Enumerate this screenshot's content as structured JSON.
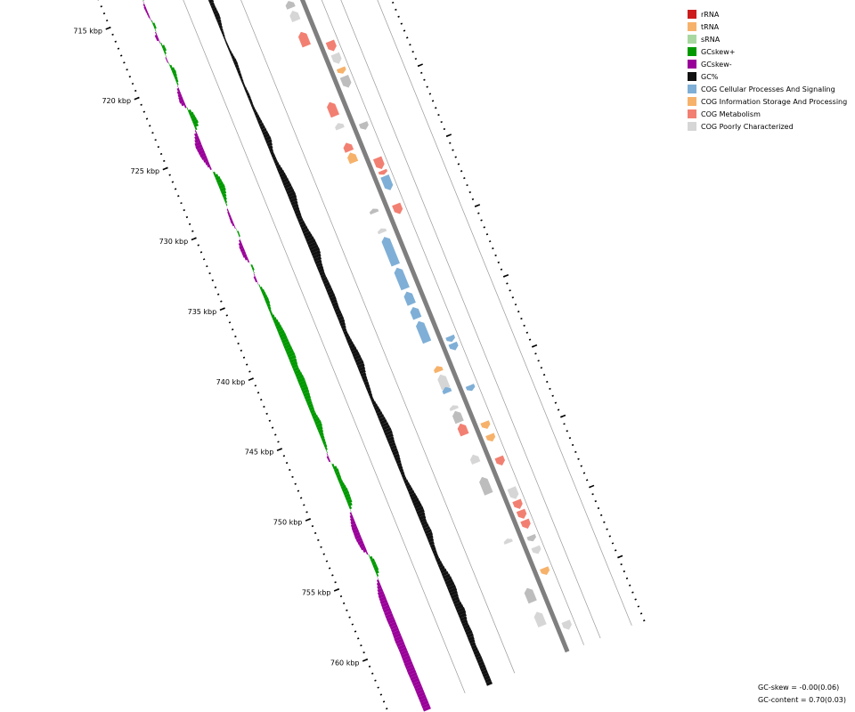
{
  "map": {
    "start_kbp": 712.8,
    "end_kbp": 763.5,
    "tick_labels": [
      "715 kbp",
      "720 kbp",
      "725 kbp",
      "730 kbp",
      "735 kbp",
      "740 kbp",
      "745 kbp",
      "750 kbp",
      "755 kbp",
      "760 kbp"
    ],
    "tick_values_kbp": [
      715,
      720,
      725,
      730,
      735,
      740,
      745,
      750,
      755,
      760
    ],
    "colors": {
      "gc_skew_pos": "#009900",
      "gc_skew_neg": "#990099",
      "gc_content": "#111111",
      "backbone": "#7f7f7f",
      "ring_line": "#9a9a9a"
    },
    "gc_skew_profile": [
      {
        "kbp": 713.0,
        "v": 0.6
      },
      {
        "kbp": 713.8,
        "v": 0.3
      },
      {
        "kbp": 714.6,
        "v": -0.25
      },
      {
        "kbp": 715.4,
        "v": -0.15
      },
      {
        "kbp": 716.0,
        "v": 0.35
      },
      {
        "kbp": 716.8,
        "v": -0.4
      },
      {
        "kbp": 717.6,
        "v": 0.45
      },
      {
        "kbp": 718.4,
        "v": -0.2
      },
      {
        "kbp": 719.2,
        "v": 0.5
      },
      {
        "kbp": 720.0,
        "v": 0.25
      },
      {
        "kbp": 720.6,
        "v": -0.35
      },
      {
        "kbp": 721.4,
        "v": -0.6
      },
      {
        "kbp": 722.2,
        "v": 0.5
      },
      {
        "kbp": 723.0,
        "v": 0.7
      },
      {
        "kbp": 723.6,
        "v": -0.3
      },
      {
        "kbp": 724.4,
        "v": -0.85
      },
      {
        "kbp": 725.2,
        "v": -0.7
      },
      {
        "kbp": 726.0,
        "v": -0.3
      },
      {
        "kbp": 726.8,
        "v": 0.55
      },
      {
        "kbp": 727.6,
        "v": 0.75
      },
      {
        "kbp": 728.4,
        "v": 0.3
      },
      {
        "kbp": 729.2,
        "v": -0.2
      },
      {
        "kbp": 730.0,
        "v": -0.3
      },
      {
        "kbp": 730.8,
        "v": 0.25
      },
      {
        "kbp": 731.6,
        "v": -0.5
      },
      {
        "kbp": 732.4,
        "v": -0.45
      },
      {
        "kbp": 733.2,
        "v": 0.3
      },
      {
        "kbp": 734.0,
        "v": -0.3
      },
      {
        "kbp": 734.8,
        "v": 0.35
      },
      {
        "kbp": 735.6,
        "v": 0.5
      },
      {
        "kbp": 736.4,
        "v": 0.2
      },
      {
        "kbp": 737.2,
        "v": 0.6
      },
      {
        "kbp": 738.0,
        "v": 0.8
      },
      {
        "kbp": 738.8,
        "v": 0.85
      },
      {
        "kbp": 739.6,
        "v": 0.95
      },
      {
        "kbp": 740.4,
        "v": 0.7
      },
      {
        "kbp": 741.2,
        "v": 0.9
      },
      {
        "kbp": 742.0,
        "v": 0.85
      },
      {
        "kbp": 742.8,
        "v": 0.65
      },
      {
        "kbp": 743.6,
        "v": 0.55
      },
      {
        "kbp": 744.4,
        "v": 0.8
      },
      {
        "kbp": 745.2,
        "v": 0.45
      },
      {
        "kbp": 746.0,
        "v": 0.3
      },
      {
        "kbp": 746.8,
        "v": -0.3
      },
      {
        "kbp": 747.6,
        "v": 0.55
      },
      {
        "kbp": 748.4,
        "v": 0.45
      },
      {
        "kbp": 749.2,
        "v": 0.7
      },
      {
        "kbp": 750.0,
        "v": 0.6
      },
      {
        "kbp": 750.8,
        "v": -0.3
      },
      {
        "kbp": 751.6,
        "v": -0.7
      },
      {
        "kbp": 752.4,
        "v": -0.75
      },
      {
        "kbp": 753.2,
        "v": -0.55
      },
      {
        "kbp": 754.0,
        "v": 0.45
      },
      {
        "kbp": 754.8,
        "v": 0.5
      },
      {
        "kbp": 755.6,
        "v": -0.35
      },
      {
        "kbp": 756.4,
        "v": -0.8
      },
      {
        "kbp": 757.2,
        "v": -0.9
      },
      {
        "kbp": 758.0,
        "v": -0.95
      },
      {
        "kbp": 758.8,
        "v": -0.9
      },
      {
        "kbp": 759.6,
        "v": -1.0
      },
      {
        "kbp": 760.4,
        "v": -0.95
      },
      {
        "kbp": 761.2,
        "v": -1.0
      },
      {
        "kbp": 762.0,
        "v": -1.0
      },
      {
        "kbp": 762.8,
        "v": -0.95
      }
    ],
    "gc_content_profile": [
      {
        "kbp": 713.0,
        "v": 0.2
      },
      {
        "kbp": 713.8,
        "v": 0.35
      },
      {
        "kbp": 714.6,
        "v": 0.6
      },
      {
        "kbp": 715.4,
        "v": 0.5
      },
      {
        "kbp": 716.2,
        "v": 0.35
      },
      {
        "kbp": 717.0,
        "v": 0.45
      },
      {
        "kbp": 717.8,
        "v": 0.2
      },
      {
        "kbp": 718.6,
        "v": 0.05
      },
      {
        "kbp": 719.4,
        "v": 0.1
      },
      {
        "kbp": 720.2,
        "v": 0.3
      },
      {
        "kbp": 721.0,
        "v": 0.2
      },
      {
        "kbp": 721.8,
        "v": 0.1
      },
      {
        "kbp": 722.6,
        "v": 0.2
      },
      {
        "kbp": 723.4,
        "v": 0.15
      },
      {
        "kbp": 724.2,
        "v": 0.3
      },
      {
        "kbp": 725.0,
        "v": 0.45
      },
      {
        "kbp": 725.8,
        "v": 0.6
      },
      {
        "kbp": 726.6,
        "v": 0.25
      },
      {
        "kbp": 727.4,
        "v": 0.3
      },
      {
        "kbp": 728.2,
        "v": 0.55
      },
      {
        "kbp": 729.0,
        "v": 0.7
      },
      {
        "kbp": 729.8,
        "v": 0.8
      },
      {
        "kbp": 730.6,
        "v": 0.55
      },
      {
        "kbp": 731.4,
        "v": 0.45
      },
      {
        "kbp": 732.2,
        "v": 0.6
      },
      {
        "kbp": 733.0,
        "v": 0.85
      },
      {
        "kbp": 733.8,
        "v": 0.95
      },
      {
        "kbp": 734.6,
        "v": 0.6
      },
      {
        "kbp": 735.4,
        "v": 0.45
      },
      {
        "kbp": 736.2,
        "v": 0.55
      },
      {
        "kbp": 737.0,
        "v": 0.6
      },
      {
        "kbp": 737.8,
        "v": 0.5
      },
      {
        "kbp": 738.6,
        "v": 0.55
      },
      {
        "kbp": 739.4,
        "v": 0.3
      },
      {
        "kbp": 740.2,
        "v": 0.45
      },
      {
        "kbp": 741.0,
        "v": 0.65
      },
      {
        "kbp": 741.8,
        "v": 0.75
      },
      {
        "kbp": 742.6,
        "v": 0.45
      },
      {
        "kbp": 743.4,
        "v": 0.35
      },
      {
        "kbp": 744.2,
        "v": 0.2
      },
      {
        "kbp": 745.0,
        "v": 0.45
      },
      {
        "kbp": 745.8,
        "v": 0.65
      },
      {
        "kbp": 746.6,
        "v": 0.8
      },
      {
        "kbp": 747.4,
        "v": 0.6
      },
      {
        "kbp": 748.2,
        "v": 0.55
      },
      {
        "kbp": 749.0,
        "v": 0.35
      },
      {
        "kbp": 749.8,
        "v": 0.25
      },
      {
        "kbp": 750.6,
        "v": 0.45
      },
      {
        "kbp": 751.4,
        "v": 0.65
      },
      {
        "kbp": 752.2,
        "v": 0.8
      },
      {
        "kbp": 753.0,
        "v": 0.55
      },
      {
        "kbp": 753.8,
        "v": 0.7
      },
      {
        "kbp": 754.6,
        "v": 0.4
      },
      {
        "kbp": 755.4,
        "v": 0.3
      },
      {
        "kbp": 756.2,
        "v": 0.45
      },
      {
        "kbp": 757.0,
        "v": 0.75
      },
      {
        "kbp": 757.8,
        "v": 0.85
      },
      {
        "kbp": 758.6,
        "v": 0.65
      },
      {
        "kbp": 759.4,
        "v": 0.85
      },
      {
        "kbp": 760.2,
        "v": 0.55
      },
      {
        "kbp": 761.0,
        "v": 0.65
      },
      {
        "kbp": 761.8,
        "v": 0.45
      },
      {
        "kbp": 762.6,
        "v": 0.55
      }
    ],
    "genes": [
      {
        "start": 713.0,
        "end": 713.4,
        "strand": -1,
        "cat": "metabolism"
      },
      {
        "start": 713.5,
        "end": 713.8,
        "strand": -1,
        "cat": "metabolism"
      },
      {
        "start": 714.6,
        "end": 714.8,
        "strand": -1,
        "cat": "metabolism"
      },
      {
        "start": 715.1,
        "end": 715.9,
        "strand": -1,
        "cat": "metabolism"
      },
      {
        "start": 716.1,
        "end": 716.4,
        "strand": -1,
        "cat": "metabolism"
      },
      {
        "start": 716.6,
        "end": 717.5,
        "strand": -1,
        "cat": "info_storage"
      },
      {
        "start": 717.8,
        "end": 718.3,
        "strand": -1,
        "cat": "poorly"
      },
      {
        "start": 718.5,
        "end": 719.2,
        "strand": -1,
        "cat": "poorly"
      },
      {
        "start": 720.0,
        "end": 721.0,
        "strand": -1,
        "cat": "metabolism"
      },
      {
        "start": 721.3,
        "end": 722.0,
        "strand": 1,
        "cat": "metabolism"
      },
      {
        "start": 722.2,
        "end": 722.9,
        "strand": 1,
        "cat": "poorly"
      },
      {
        "start": 723.2,
        "end": 723.6,
        "strand": 1,
        "cat": "info_storage"
      },
      {
        "start": 723.8,
        "end": 724.6,
        "strand": 1,
        "cat": "poorly"
      },
      {
        "start": 725.0,
        "end": 726.0,
        "strand": -1,
        "cat": "metabolism"
      },
      {
        "start": 726.5,
        "end": 726.9,
        "strand": -1,
        "cat": "poorly"
      },
      {
        "start": 727.1,
        "end": 727.6,
        "strand": 1,
        "cat": "poorly"
      },
      {
        "start": 727.9,
        "end": 728.5,
        "strand": -1,
        "cat": "metabolism"
      },
      {
        "start": 728.6,
        "end": 729.3,
        "strand": -1,
        "cat": "info_storage"
      },
      {
        "start": 729.6,
        "end": 730.4,
        "strand": 1,
        "cat": "metabolism"
      },
      {
        "start": 730.5,
        "end": 730.8,
        "strand": 1,
        "cat": "metabolism"
      },
      {
        "start": 730.9,
        "end": 731.9,
        "strand": 1,
        "cat": "cellular"
      },
      {
        "start": 732.6,
        "end": 732.9,
        "strand": -1,
        "cat": "poorly"
      },
      {
        "start": 732.9,
        "end": 733.6,
        "strand": 1,
        "cat": "metabolism"
      },
      {
        "start": 734.0,
        "end": 734.3,
        "strand": -1,
        "cat": "poorly"
      },
      {
        "start": 734.6,
        "end": 736.6,
        "strand": -1,
        "cat": "cellular"
      },
      {
        "start": 736.8,
        "end": 738.3,
        "strand": -1,
        "cat": "cellular"
      },
      {
        "start": 738.5,
        "end": 739.4,
        "strand": -1,
        "cat": "cellular"
      },
      {
        "start": 739.6,
        "end": 740.4,
        "strand": -1,
        "cat": "cellular"
      },
      {
        "start": 740.6,
        "end": 742.1,
        "strand": -1,
        "cat": "cellular"
      },
      {
        "start": 742.3,
        "end": 742.7,
        "strand": 1,
        "cat": "cellular"
      },
      {
        "start": 742.8,
        "end": 743.3,
        "strand": 1,
        "cat": "cellular"
      },
      {
        "start": 743.8,
        "end": 744.2,
        "strand": -1,
        "cat": "info_storage"
      },
      {
        "start": 744.4,
        "end": 745.4,
        "strand": -1,
        "cat": "poorly"
      },
      {
        "start": 745.3,
        "end": 745.7,
        "strand": -1,
        "cat": "cellular"
      },
      {
        "start": 745.8,
        "end": 746.2,
        "strand": 1,
        "cat": "cellular"
      },
      {
        "start": 746.6,
        "end": 746.9,
        "strand": -1,
        "cat": "poorly"
      },
      {
        "start": 747.0,
        "end": 747.8,
        "strand": -1,
        "cat": "poorly"
      },
      {
        "start": 747.9,
        "end": 748.7,
        "strand": -1,
        "cat": "metabolism"
      },
      {
        "start": 748.4,
        "end": 748.9,
        "strand": 1,
        "cat": "info_storage"
      },
      {
        "start": 749.3,
        "end": 749.8,
        "strand": 1,
        "cat": "info_storage"
      },
      {
        "start": 750.1,
        "end": 750.7,
        "strand": -1,
        "cat": "poorly"
      },
      {
        "start": 750.9,
        "end": 751.5,
        "strand": 1,
        "cat": "metabolism"
      },
      {
        "start": 751.7,
        "end": 752.9,
        "strand": -1,
        "cat": "poorly"
      },
      {
        "start": 753.1,
        "end": 753.9,
        "strand": 1,
        "cat": "poorly"
      },
      {
        "start": 754.0,
        "end": 754.6,
        "strand": 1,
        "cat": "metabolism"
      },
      {
        "start": 754.7,
        "end": 755.3,
        "strand": 1,
        "cat": "metabolism"
      },
      {
        "start": 755.4,
        "end": 756.0,
        "strand": 1,
        "cat": "metabolism"
      },
      {
        "start": 756.1,
        "end": 756.4,
        "strand": -1,
        "cat": "poorly"
      },
      {
        "start": 756.5,
        "end": 756.9,
        "strand": 1,
        "cat": "poorly"
      },
      {
        "start": 757.3,
        "end": 757.8,
        "strand": 1,
        "cat": "poorly"
      },
      {
        "start": 758.8,
        "end": 759.3,
        "strand": 1,
        "cat": "info_storage"
      },
      {
        "start": 759.6,
        "end": 760.6,
        "strand": -1,
        "cat": "poorly"
      },
      {
        "start": 761.3,
        "end": 762.3,
        "strand": -1,
        "cat": "poorly"
      },
      {
        "start": 762.6,
        "end": 763.2,
        "strand": 1,
        "cat": "poorly"
      }
    ]
  },
  "legend": {
    "items": [
      {
        "label": "rRNA",
        "color": "#cc1c1c"
      },
      {
        "label": "tRNA",
        "color": "#f6b26b"
      },
      {
        "label": "sRNA",
        "color": "#a8d8a0"
      },
      {
        "label": "GCskew+",
        "color": "#009900"
      },
      {
        "label": "GCskew-",
        "color": "#990099"
      },
      {
        "label": "GC%",
        "color": "#111111"
      },
      {
        "label": "COG Cellular Processes And Signaling",
        "color": "#7fafd6"
      },
      {
        "label": "COG Information Storage And Processing",
        "color": "#f6b26b"
      },
      {
        "label": "COG Metabolism",
        "color": "#f28072"
      },
      {
        "label": "COG Poorly Characterized",
        "color": "#d6d6d6"
      }
    ]
  },
  "category_colors": {
    "cellular": "#7fafd6",
    "info_storage": "#f6b26b",
    "metabolism": "#f28072",
    "poorly": "#d6d6d6",
    "poorly_dark": "#bdbdbd"
  },
  "stats": {
    "gc_skew": "GC-skew = -0.00(0.06)",
    "gc_content": "GC-content = 0.70(0.03)"
  }
}
